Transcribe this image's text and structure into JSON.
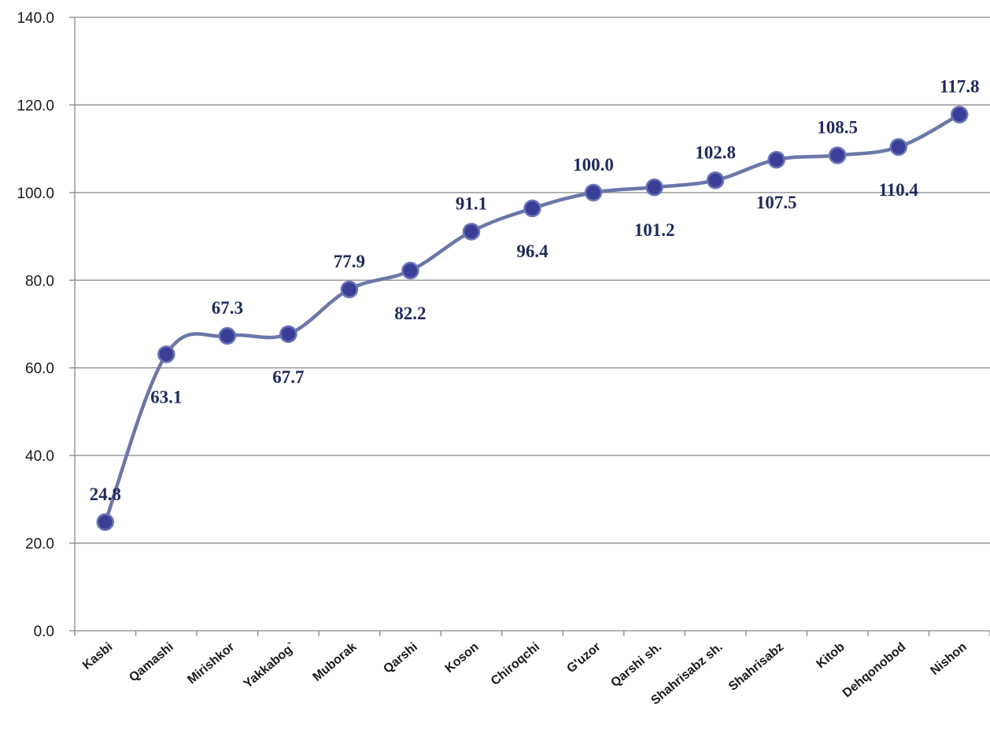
{
  "chart_data": {
    "type": "line",
    "smooth": true,
    "categories": [
      "Kasbi",
      "Qamashi",
      "Mirishkor",
      "Yakkabog`",
      "Muborak",
      "Qarshi",
      "Koson",
      "Chiroqchi",
      "G'uzor",
      "Qarshi sh.",
      "Shahrisabz sh.",
      "Shahrisabz",
      "Kitob",
      "Dehqonobod",
      "Nishon"
    ],
    "series": [
      {
        "values": [
          24.8,
          63.1,
          67.3,
          67.7,
          77.9,
          82.2,
          91.1,
          96.4,
          100.0,
          101.2,
          102.8,
          107.5,
          108.5,
          110.4,
          117.8
        ],
        "labels": [
          "24.8",
          "63.1",
          "67.3",
          "67.7",
          "77.9",
          "82.2",
          "91.1",
          "96.4",
          "100.0",
          "101.2",
          "102.8",
          "107.5",
          "108.5",
          "110.4",
          "117.8"
        ],
        "label_positions": [
          "above",
          "below",
          "above",
          "below",
          "above",
          "below",
          "above",
          "below",
          "above",
          "below",
          "above",
          "below",
          "above",
          "below",
          "above"
        ]
      }
    ],
    "ylim": [
      0,
      140
    ],
    "yticks": [
      "0.0",
      "20.0",
      "40.0",
      "60.0",
      "80.0",
      "100.0",
      "120.0",
      "140.0"
    ],
    "grid": true,
    "legend": "none",
    "title": "",
    "xlabel": "",
    "ylabel": "",
    "colors": {
      "line": "#6b77a8",
      "marker": "#3a3e96",
      "marker_edge": "#6a74b8",
      "label": "#1f2a5c",
      "grid": "#888888"
    }
  }
}
